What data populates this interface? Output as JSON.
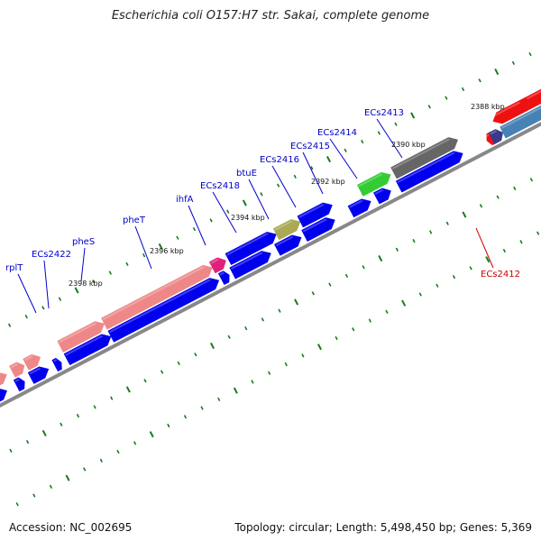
{
  "title": "Escherichia coli O157:H7 str. Sakai, complete genome",
  "footer": {
    "accession": "Accession: NC_002695",
    "topology": "Topology: circular; Length: 5,498,450 bp; Genes: 5,369"
  },
  "colors": {
    "gene_label": "#0000cc",
    "highlight_label": "#cc0000",
    "tick": "#1a7a1a",
    "backbone": "#888888",
    "cds_blue": "#0000ee",
    "rna_pink": "#ee8888",
    "trna_magenta": "#e0207a",
    "misc_olive": "#aaaa55",
    "green_cds": "#33cc33",
    "gray_cds": "#666666",
    "red_cds": "#ee1111",
    "steel_cds": "#4682b4"
  },
  "scale_labels": [
    "2388 kbp",
    "2390 kbp",
    "2392 kbp",
    "2394 kbp",
    "2396 kbp",
    "2398 kbp"
  ],
  "gene_labels": [
    {
      "name": "ECs2413",
      "color": "blue"
    },
    {
      "name": "ECs2414",
      "color": "blue"
    },
    {
      "name": "ECs2415",
      "color": "blue"
    },
    {
      "name": "ECs2416",
      "color": "blue"
    },
    {
      "name": "btuE",
      "color": "blue"
    },
    {
      "name": "ECs2418",
      "color": "blue"
    },
    {
      "name": "ihfA",
      "color": "blue"
    },
    {
      "name": "pheT",
      "color": "blue"
    },
    {
      "name": "pheS",
      "color": "blue"
    },
    {
      "name": "ECs2422",
      "color": "blue"
    },
    {
      "name": "rplT",
      "color": "blue"
    },
    {
      "name": "ECs2412",
      "color": "red"
    }
  ]
}
